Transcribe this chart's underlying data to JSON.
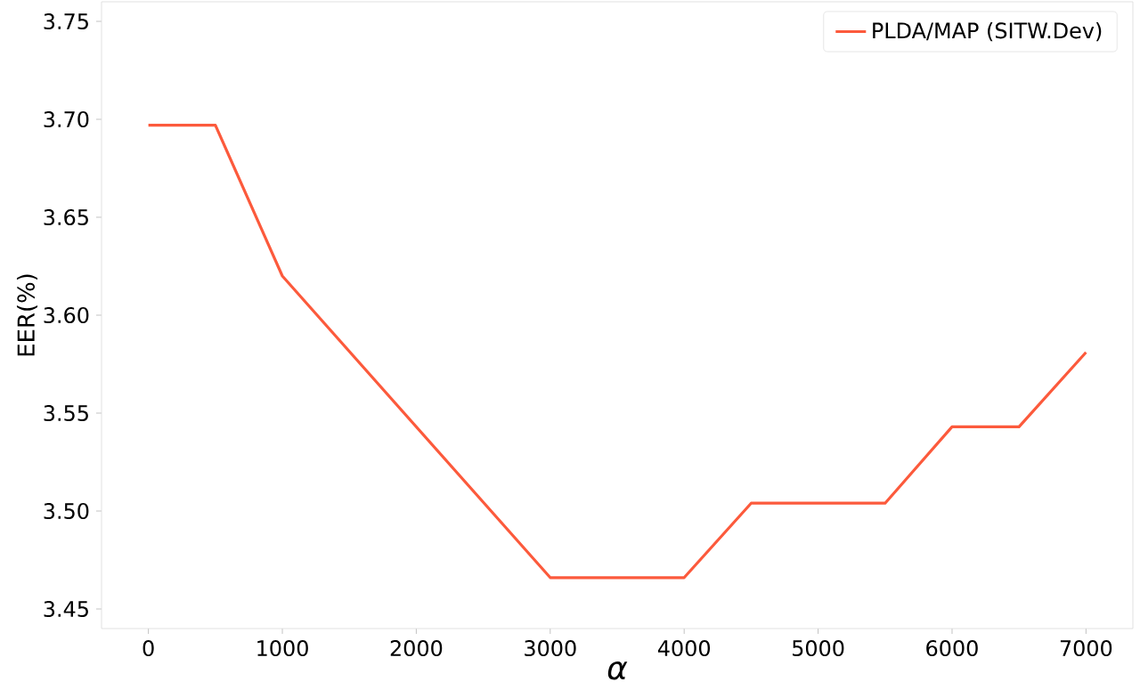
{
  "chart_data": {
    "type": "line",
    "xlabel": "α",
    "ylabel": "EER(%)",
    "x": [
      0,
      500,
      1000,
      3000,
      4000,
      4500,
      5500,
      6000,
      6500,
      7000
    ],
    "series": [
      {
        "name": "PLDA/MAP (SITW.Dev)",
        "color": "#fc5a3c",
        "values": [
          3.697,
          3.697,
          3.62,
          3.466,
          3.466,
          3.504,
          3.504,
          3.543,
          3.543,
          3.581
        ]
      }
    ],
    "xlim": [
      -350,
      7350
    ],
    "ylim": [
      3.44,
      3.76
    ],
    "xticks": [
      0,
      1000,
      2000,
      3000,
      4000,
      5000,
      6000,
      7000
    ],
    "yticks": [
      {
        "value": 3.45,
        "label": "3.45"
      },
      {
        "value": 3.5,
        "label": "3.50"
      },
      {
        "value": 3.55,
        "label": "3.55"
      },
      {
        "value": 3.6,
        "label": "3.60"
      },
      {
        "value": 3.65,
        "label": "3.65"
      },
      {
        "value": 3.7,
        "label": "3.70"
      },
      {
        "value": 3.75,
        "label": "3.75"
      }
    ],
    "legend": "top right",
    "grid": false,
    "marker": "none",
    "line_style": "solid"
  }
}
